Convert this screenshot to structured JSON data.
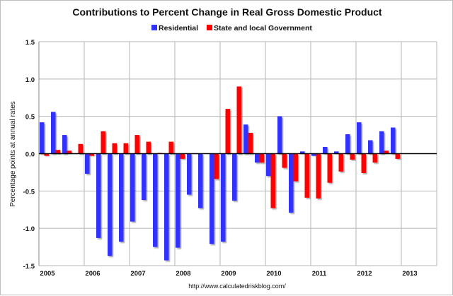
{
  "chart_data": {
    "type": "bar",
    "title": "Contributions to Percent Change in Real Gross Domestic Product",
    "ylabel": "Percentage points at annual rates",
    "xlabel": "",
    "source_text": "http://www.calculatedriskblog.com/",
    "ylim": [
      -1.5,
      1.5
    ],
    "yticks": [
      "1.5",
      "1.0",
      "0.5",
      "0.0",
      "-0.5",
      "-1.0",
      "-1.5"
    ],
    "ytick_values": [
      1.5,
      1.0,
      0.5,
      0.0,
      -0.5,
      -1.0,
      -1.5
    ],
    "xticks": [
      "2005",
      "2006",
      "2007",
      "2008",
      "2009",
      "2010",
      "2011",
      "2012",
      "2013"
    ],
    "grid": true,
    "legend_position": "top",
    "categories": [
      "2005Q1",
      "2005Q2",
      "2005Q3",
      "2005Q4",
      "2006Q1",
      "2006Q2",
      "2006Q3",
      "2006Q4",
      "2007Q1",
      "2007Q2",
      "2007Q3",
      "2007Q4",
      "2008Q1",
      "2008Q2",
      "2008Q3",
      "2008Q4",
      "2009Q1",
      "2009Q2",
      "2009Q3",
      "2009Q4",
      "2010Q1",
      "2010Q2",
      "2010Q3",
      "2010Q4",
      "2011Q1",
      "2011Q2",
      "2011Q3",
      "2011Q4",
      "2012Q1",
      "2012Q2",
      "2012Q3",
      "2012Q4"
    ],
    "series": [
      {
        "name": "Residential",
        "color": "#3333ff",
        "values": [
          0.42,
          0.56,
          0.25,
          0.0,
          -0.27,
          -1.13,
          -1.37,
          -1.18,
          -0.91,
          -0.62,
          -1.25,
          -1.43,
          -1.26,
          -0.55,
          -0.73,
          -1.21,
          -1.18,
          -0.63,
          0.39,
          -0.12,
          -0.3,
          0.5,
          -0.79,
          0.03,
          -0.03,
          0.09,
          0.03,
          0.26,
          0.42,
          0.18,
          0.3,
          0.35
        ]
      },
      {
        "name": "State and local Government",
        "color": "#ff0000",
        "values": [
          -0.03,
          0.05,
          0.04,
          0.13,
          -0.03,
          0.3,
          0.14,
          0.14,
          0.25,
          0.16,
          0.01,
          0.16,
          -0.07,
          0.0,
          0.005,
          -0.34,
          0.6,
          0.9,
          0.28,
          -0.12,
          -0.73,
          -0.19,
          -0.37,
          -0.59,
          -0.6,
          -0.39,
          -0.24,
          -0.08,
          -0.26,
          -0.12,
          0.04,
          -0.07
        ]
      }
    ]
  }
}
